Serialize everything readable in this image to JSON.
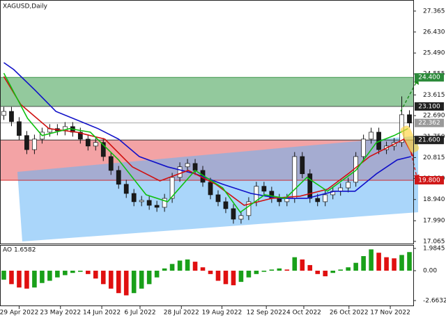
{
  "chart_data": {
    "type": "candlestick",
    "title": "XAGUSD,Daily",
    "xlim": [
      -0.5,
      53.5
    ],
    "xticks": [
      {
        "value": 2.0,
        "label": "29 Apr 2022"
      },
      {
        "value": 7.4,
        "label": "23 May 2022"
      },
      {
        "value": 12.8,
        "label": "14 Jun 2022"
      },
      {
        "value": 17.8,
        "label": "6 Jul 2022"
      },
      {
        "value": 23.2,
        "label": "28 Jul 2022"
      },
      {
        "value": 28.5,
        "label": "19 Aug 2022"
      },
      {
        "value": 34.3,
        "label": "12 Sep 2022"
      },
      {
        "value": 39.2,
        "label": "4 Oct 2022"
      },
      {
        "value": 45.1,
        "label": "26 Oct 2022"
      },
      {
        "value": 50.5,
        "label": "17 Nov 2022"
      }
    ],
    "ylim": [
      16.97,
      27.86
    ],
    "yticks": [
      27.365,
      {
        "value": 26.43,
        "label": "26.430"
      },
      {
        "value": 25.49,
        "label": "25.490"
      },
      24.555,
      23.615,
      {
        "value": 22.69,
        "label": "22.690"
      },
      {
        "value": 21.75,
        "label": "21.750"
      },
      20.815,
      {
        "value": 19.88,
        "label": "19.880"
      },
      {
        "value": 18.94,
        "label": "18.940"
      },
      {
        "value": 17.99,
        "label": "17.990"
      },
      17.065
    ],
    "open": [
      22.7,
      22.88,
      22.42,
      21.8,
      21.17,
      21.64,
      21.95,
      22.11,
      22.01,
      22.2,
      21.95,
      21.64,
      21.33,
      21.49,
      20.86,
      20.24,
      19.62,
      19.21,
      18.84,
      18.9,
      18.68,
      18.59,
      18.99,
      19.93,
      20.4,
      20.55,
      20.24,
      19.71,
      19.15,
      18.84,
      18.53,
      18.06,
      18.22,
      18.84,
      19.53,
      19.31,
      18.99,
      18.84,
      18.99,
      20.86,
      20.09,
      18.99,
      18.84,
      19.15,
      19.31,
      19.46,
      19.71,
      20.86,
      21.64,
      21.95,
      21.17,
      21.33,
      21.49,
      22.73
    ],
    "high": [
      23.08,
      23.08,
      22.62,
      22.0,
      21.84,
      22.15,
      22.31,
      22.31,
      22.4,
      22.4,
      22.15,
      21.84,
      21.69,
      21.69,
      21.06,
      20.44,
      19.82,
      19.41,
      19.1,
      19.1,
      18.88,
      19.19,
      20.13,
      20.6,
      20.75,
      20.75,
      20.44,
      19.91,
      19.35,
      19.04,
      18.73,
      18.42,
      19.04,
      19.73,
      19.73,
      19.51,
      19.19,
      19.19,
      21.06,
      21.06,
      20.29,
      19.19,
      19.35,
      19.51,
      19.66,
      19.91,
      21.06,
      21.84,
      22.15,
      22.15,
      21.53,
      21.69,
      23.55,
      22.93
    ],
    "low": [
      22.5,
      22.22,
      21.6,
      20.97,
      20.97,
      21.44,
      21.75,
      21.81,
      21.81,
      21.75,
      21.44,
      21.13,
      21.13,
      20.66,
      20.04,
      19.42,
      19.01,
      18.64,
      18.64,
      18.48,
      18.39,
      18.39,
      18.79,
      19.73,
      20.2,
      20.04,
      19.51,
      18.95,
      18.64,
      18.33,
      17.86,
      17.86,
      18.02,
      18.64,
      19.11,
      18.79,
      18.64,
      18.64,
      18.79,
      19.89,
      18.79,
      18.64,
      18.64,
      18.95,
      19.11,
      19.26,
      19.51,
      20.66,
      21.44,
      20.97,
      20.97,
      21.13,
      21.29,
      22.16
    ],
    "close": [
      22.88,
      22.42,
      21.8,
      21.17,
      21.64,
      21.95,
      22.11,
      22.01,
      22.2,
      21.95,
      21.64,
      21.33,
      21.49,
      20.86,
      20.24,
      19.62,
      19.21,
      18.84,
      18.9,
      18.68,
      18.59,
      18.99,
      19.93,
      20.4,
      20.55,
      20.24,
      19.71,
      19.15,
      18.84,
      18.53,
      18.06,
      18.22,
      18.84,
      19.53,
      19.31,
      18.99,
      18.84,
      18.99,
      20.86,
      20.09,
      18.99,
      18.84,
      19.15,
      19.31,
      19.46,
      19.71,
      20.86,
      21.64,
      21.95,
      21.17,
      21.33,
      21.49,
      22.73,
      22.36
    ],
    "up_color": "#ffffff",
    "down_color": "#1a1a1a",
    "moving_averages": [
      {
        "color": "#1010c8",
        "x": [
          0,
          1.3,
          4.1,
          6.8,
          12.3,
          15,
          17.7,
          21.4,
          25,
          28.6,
          32.3,
          35.9,
          39.6,
          43.2,
          45.9,
          48.7,
          51.4,
          53.2
        ],
        "values": [
          25.06,
          24.75,
          23.82,
          22.88,
          22.11,
          21.64,
          20.86,
          20.4,
          20.09,
          19.62,
          19.21,
          18.99,
          18.99,
          19.31,
          19.31,
          20.09,
          20.71,
          20.86
        ]
      },
      {
        "color": "#d01010",
        "x": [
          0,
          2.2,
          5.9,
          9.5,
          13.2,
          16.8,
          20.4,
          24.1,
          27.7,
          31.4,
          35,
          38.7,
          42.3,
          45,
          47.8,
          50.5,
          52.3,
          53.5
        ],
        "values": [
          24.44,
          23.19,
          22.11,
          21.95,
          21.64,
          20.4,
          19.77,
          20.24,
          19.62,
          18.68,
          18.99,
          19.09,
          19.4,
          20.09,
          20.86,
          21.33,
          21.64,
          20.86
        ]
      },
      {
        "color": "#10c010",
        "x": [
          0,
          3.1,
          5,
          8.6,
          11.3,
          15,
          18.6,
          21.4,
          25,
          28.6,
          30.9,
          34.1,
          36.8,
          39.6,
          42.3,
          46,
          48.7,
          51,
          52.8
        ],
        "values": [
          24.59,
          22.57,
          21.8,
          22.11,
          21.95,
          20.71,
          19.15,
          18.84,
          20.24,
          19.46,
          18.37,
          19.15,
          18.99,
          19.93,
          19.31,
          20.24,
          21.49,
          21.8,
          22.11
        ]
      }
    ],
    "zones": [
      {
        "top": 24.4,
        "bottom": 23.1,
        "color": "#93c99d"
      },
      {
        "top": 21.6,
        "bottom": 19.8,
        "color": "#f3a3a5"
      }
    ],
    "levels": [
      {
        "value": 24.4,
        "label": "24.400",
        "color": "#2b8a3a"
      },
      {
        "value": 23.1,
        "label": "23.100",
        "color": "#222222"
      },
      {
        "value": 22.362,
        "label": "22.362",
        "color": "#9a9a9a"
      },
      {
        "value": 21.6,
        "label": "21.600",
        "color": "#222222"
      },
      {
        "value": 19.8,
        "label": "19.800",
        "color": "#d01818"
      }
    ],
    "indicator": {
      "label": "AO 1.6582",
      "ylim": [
        -3.164,
        2.295
      ],
      "yticks": [
        1.9845,
        {
          "value": 0,
          "label": "0.00"
        },
        -2.6632
      ],
      "up_color": "#1aa01a",
      "down_color": "#e01010",
      "values": [
        -0.8,
        -1.2,
        -1.5,
        -1.6,
        -1.5,
        -1.1,
        -0.9,
        -0.6,
        -0.4,
        -0.2,
        -0.1,
        -0.3,
        -0.7,
        -1.2,
        -1.6,
        -2.0,
        -2.2,
        -2.0,
        -1.6,
        -1.2,
        -0.6,
        0.2,
        0.6,
        0.9,
        1.0,
        0.8,
        0.3,
        -0.3,
        -0.9,
        -1.2,
        -1.3,
        -1.0,
        -0.6,
        -0.3,
        -0.1,
        0.1,
        0.2,
        0.1,
        1.2,
        1.0,
        0.5,
        -0.3,
        -0.5,
        -0.2,
        0.1,
        0.3,
        0.7,
        1.3,
        1.9,
        1.6,
        1.2,
        1.1,
        1.4,
        1.6582
      ]
    }
  }
}
